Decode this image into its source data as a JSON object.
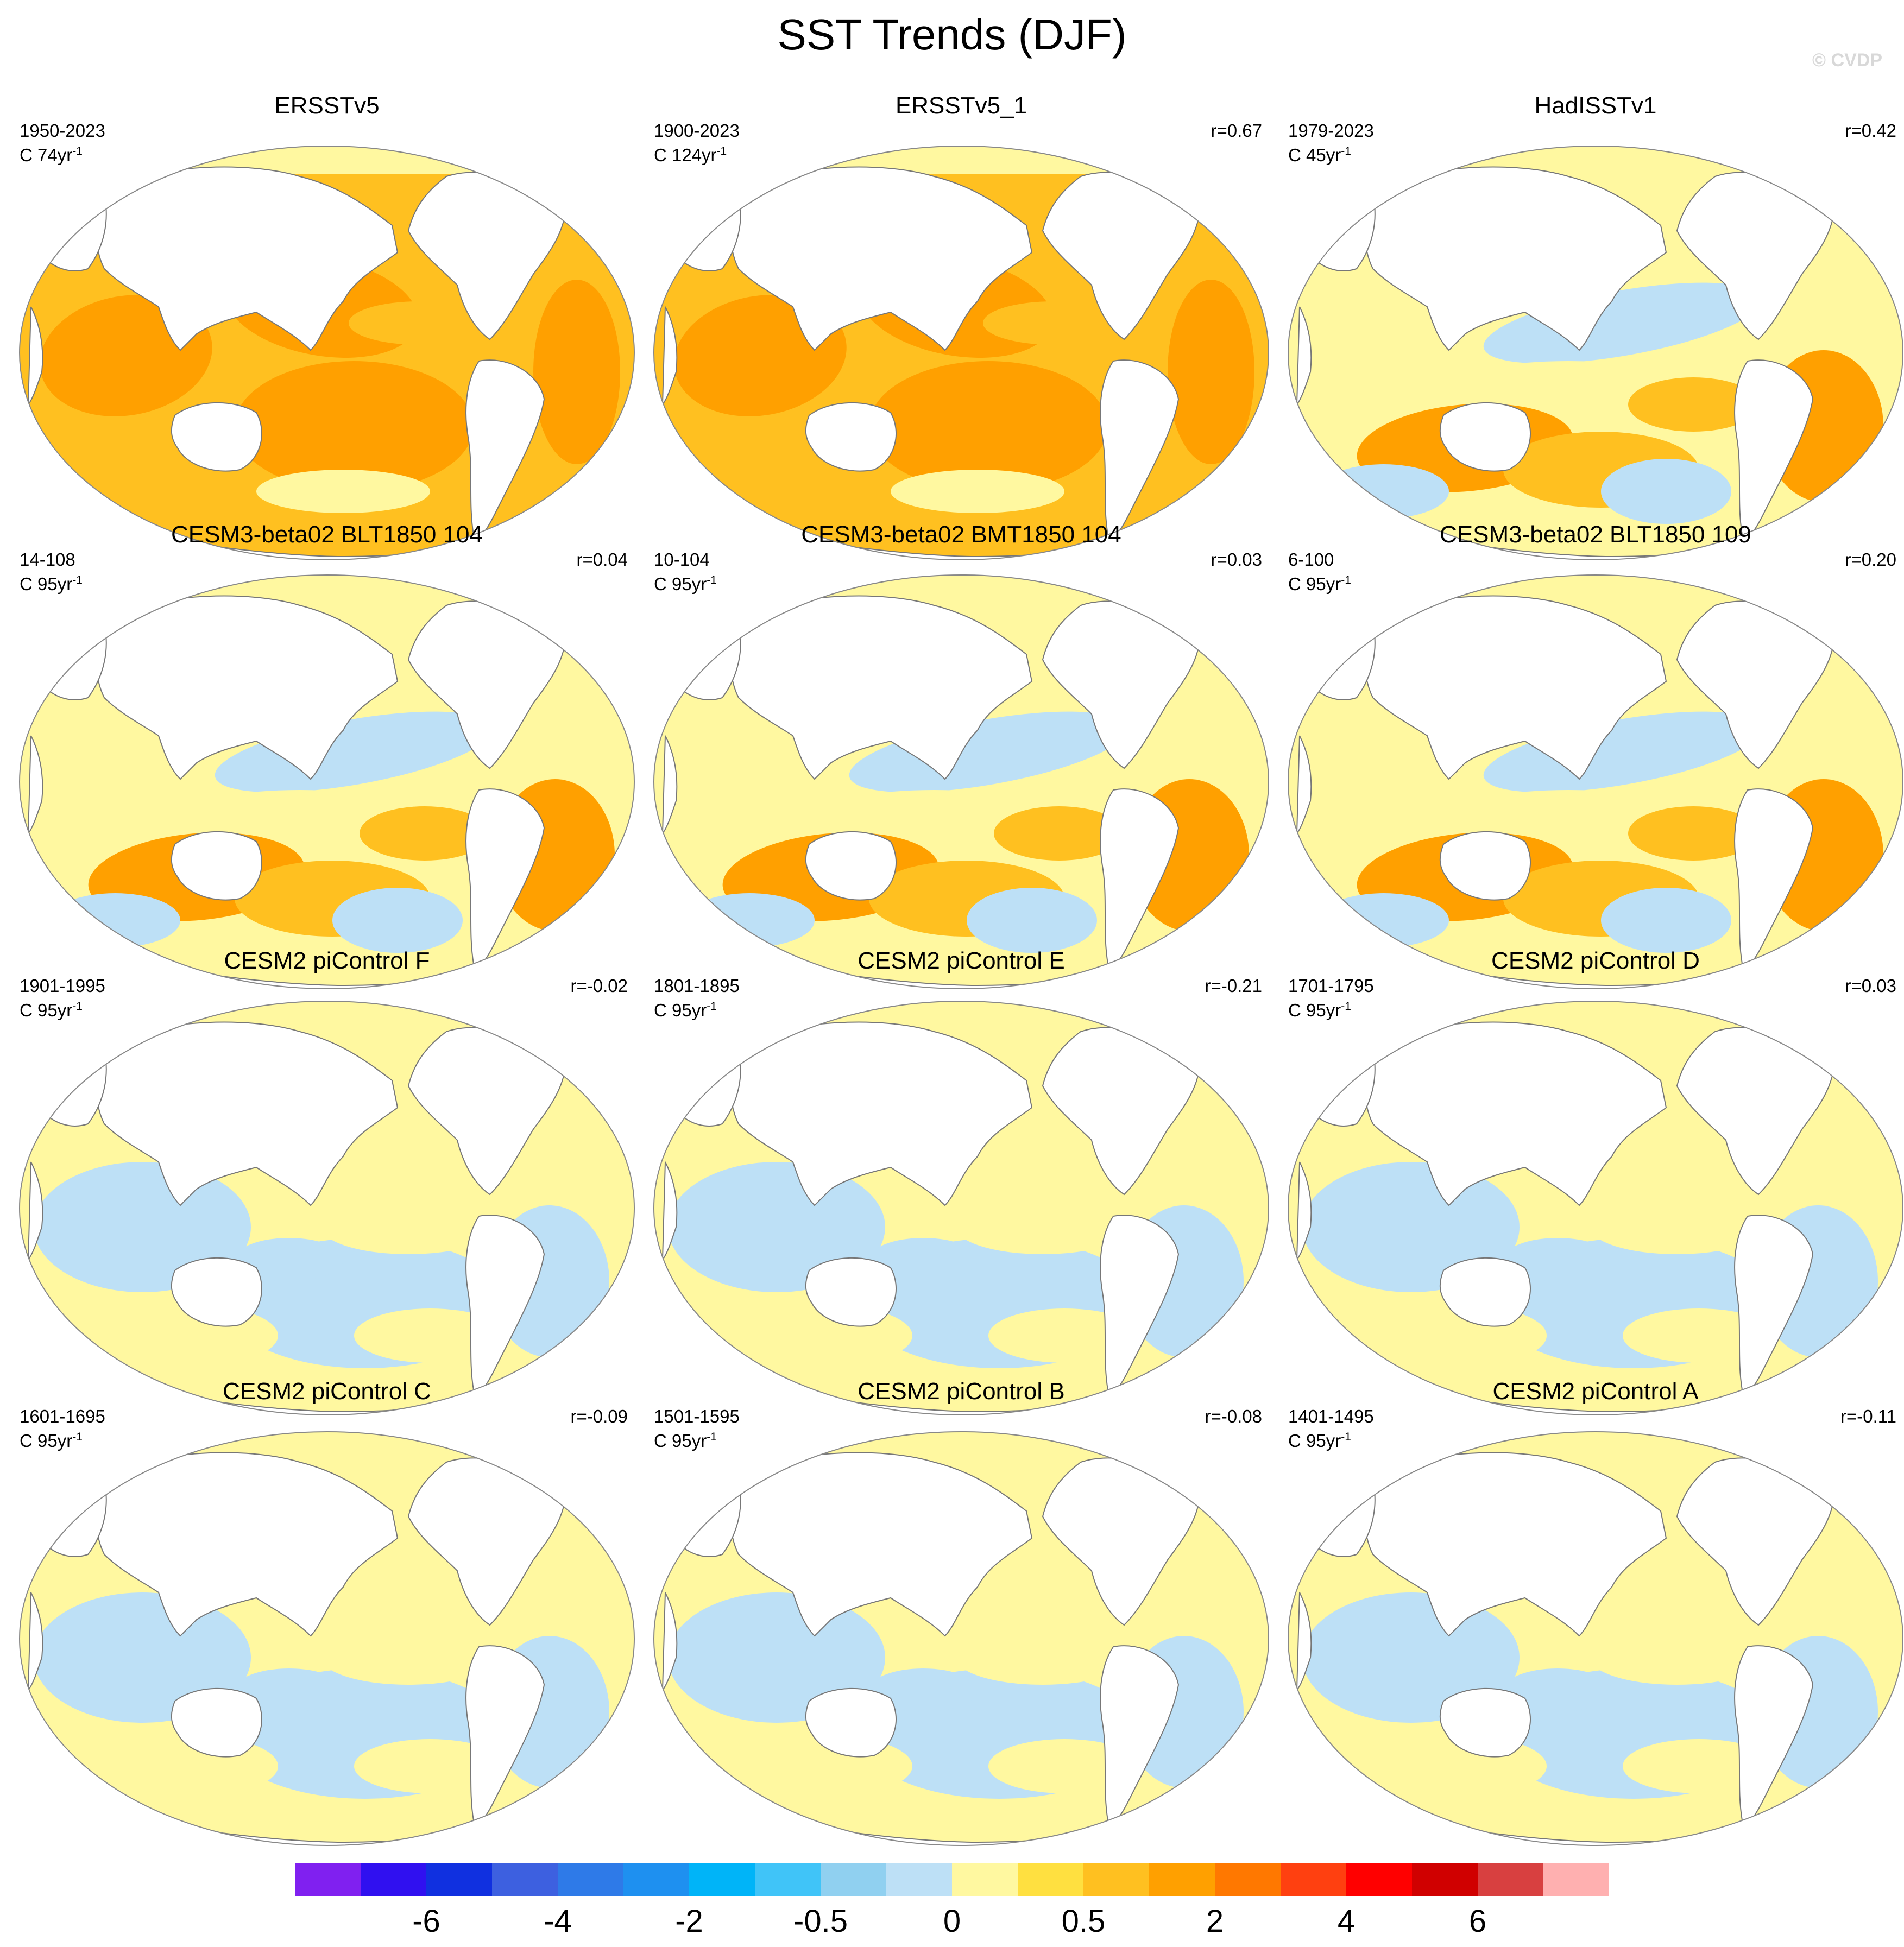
{
  "title": "SST Trends (DJF)",
  "watermark": "© CVDP",
  "panels": [
    {
      "name": "ERSSTv5",
      "period": "1950-2023",
      "units": "C 74yr",
      "exp": "-1",
      "corr": ""
    },
    {
      "name": "ERSSTv5_1",
      "period": "1900-2023",
      "units": "C 124yr",
      "exp": "-1",
      "corr": "r=0.67"
    },
    {
      "name": "HadISSTv1",
      "period": "1979-2023",
      "units": "C 45yr",
      "exp": "-1",
      "corr": "r=0.42"
    },
    {
      "name": "CESM3-beta02 BLT1850 104",
      "period": "14-108",
      "units": "C 95yr",
      "exp": "-1",
      "corr": "r=0.04"
    },
    {
      "name": "CESM3-beta02 BMT1850 104",
      "period": "10-104",
      "units": "C 95yr",
      "exp": "-1",
      "corr": "r=0.03"
    },
    {
      "name": "CESM3-beta02 BLT1850 109",
      "period": "6-100",
      "units": "C 95yr",
      "exp": "-1",
      "corr": "r=0.20"
    },
    {
      "name": "CESM2 piControl F",
      "period": "1901-1995",
      "units": "C 95yr",
      "exp": "-1",
      "corr": "r=-0.02"
    },
    {
      "name": "CESM2 piControl E",
      "period": "1801-1895",
      "units": "C 95yr",
      "exp": "-1",
      "corr": "r=-0.21"
    },
    {
      "name": "CESM2 piControl D",
      "period": "1701-1795",
      "units": "C 95yr",
      "exp": "-1",
      "corr": "r=0.03"
    },
    {
      "name": "CESM2 piControl C",
      "period": "1601-1695",
      "units": "C 95yr",
      "exp": "-1",
      "corr": "r=-0.09"
    },
    {
      "name": "CESM2 piControl B",
      "period": "1501-1595",
      "units": "C 95yr",
      "exp": "-1",
      "corr": "r=-0.08"
    },
    {
      "name": "CESM2 piControl A",
      "period": "1401-1495",
      "units": "C 95yr",
      "exp": "-1",
      "corr": "r=-0.11"
    }
  ],
  "colorbar": {
    "colors": [
      "#8020f0",
      "#3010f0",
      "#1030e0",
      "#3d60e0",
      "#2e7ae8",
      "#1e90f0",
      "#00b4f8",
      "#40c4f8",
      "#90d0f0",
      "#bde0f6",
      "#fff8a0",
      "#ffe040",
      "#ffc020",
      "#ffa000",
      "#ff7800",
      "#ff4010",
      "#ff0000",
      "#d00000",
      "#d84040",
      "#ffb0b0"
    ],
    "labels": [
      {
        "text": "-6",
        "index": 2
      },
      {
        "text": "-4",
        "index": 4
      },
      {
        "text": "-2",
        "index": 6
      },
      {
        "text": "-0.5",
        "index": 8
      },
      {
        "text": "0",
        "index": 10
      },
      {
        "text": "0.5",
        "index": 12
      },
      {
        "text": "2",
        "index": 14
      },
      {
        "text": "4",
        "index": 16
      },
      {
        "text": "6",
        "index": 18
      }
    ]
  },
  "regime_colors": {
    "warm": "#ffa000",
    "mixed": "#ffc020",
    "neutral": "#fff8a0",
    "cool": "#bde0f6",
    "land": "#ffffff"
  }
}
